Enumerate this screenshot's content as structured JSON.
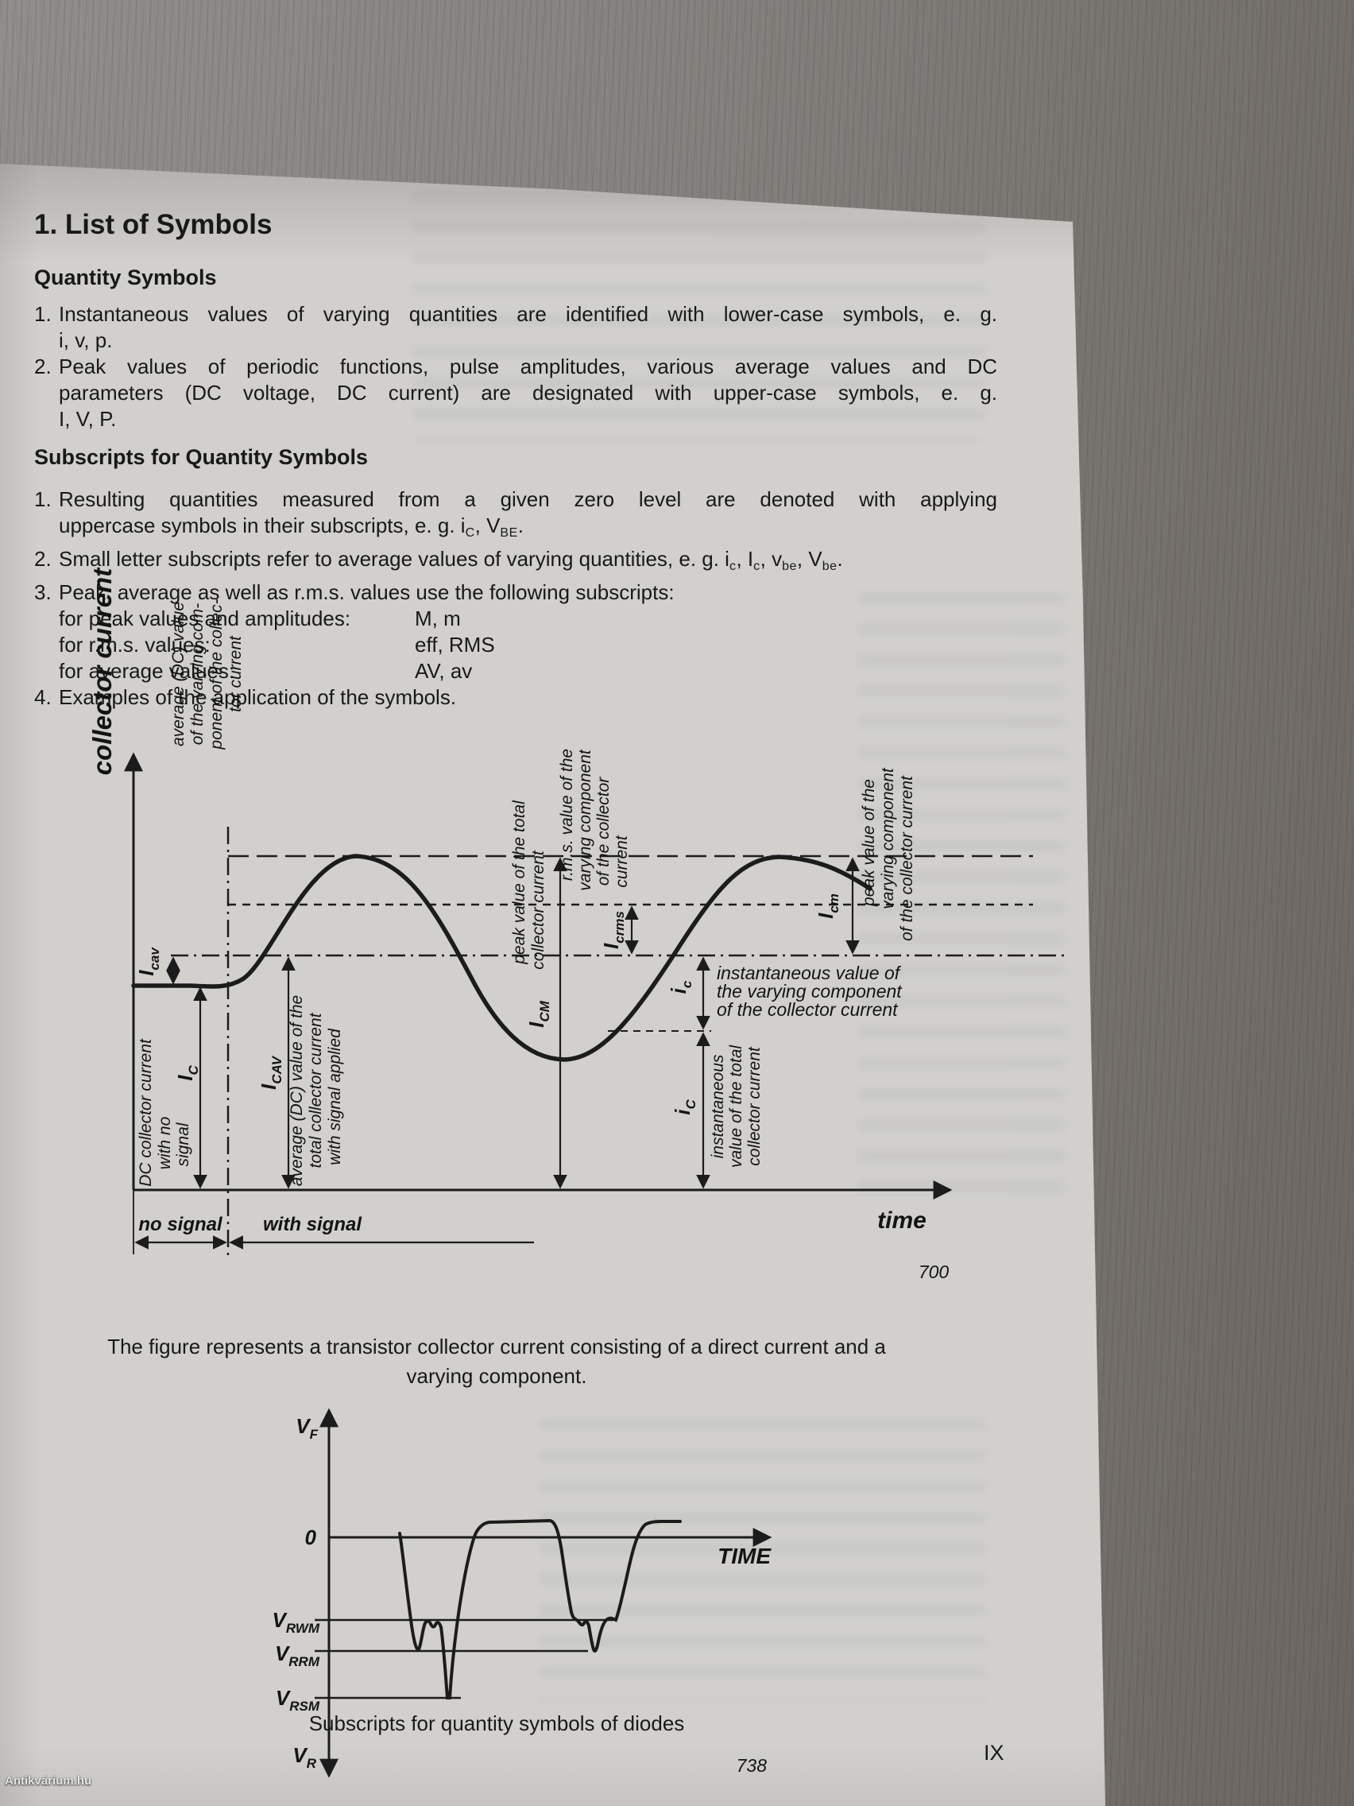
{
  "photo": {
    "watermark": "Antikvárium.hu"
  },
  "page": {
    "title": "1. List of Symbols",
    "page_number": "IX"
  },
  "quantity_symbols": {
    "title": "Quantity Symbols",
    "items": [
      {
        "num": "1.",
        "lines": [
          {
            "j": true,
            "seg": [
              {
                "t": "Instantaneous values of varying quantities are identified with lower-case symbols, e. g."
              }
            ]
          },
          {
            "seg": [
              {
                "t": "i, v, p."
              }
            ]
          }
        ]
      },
      {
        "num": "2.",
        "lines": [
          {
            "j": true,
            "seg": [
              {
                "t": "Peak values of periodic functions, pulse amplitudes, various average values and DC"
              }
            ]
          },
          {
            "j": true,
            "seg": [
              {
                "t": "parameters (DC voltage, DC current) are designated with upper-case symbols, e. g."
              }
            ]
          },
          {
            "seg": [
              {
                "t": "I, V, P."
              }
            ]
          }
        ]
      }
    ]
  },
  "subscript_symbols": {
    "title": "Subscripts for Quantity Symbols",
    "items": [
      {
        "num": "1.",
        "lines": [
          {
            "j": true,
            "seg": [
              {
                "t": "Resulting quantities measured from a given zero level are denoted with applying"
              }
            ]
          },
          {
            "seg": [
              {
                "t": "uppercase symbols in their subscripts, e. g. i"
              },
              {
                "t": "C",
                "sub": true
              },
              {
                "t": ", V"
              },
              {
                "t": "BE",
                "sub": true
              },
              {
                "t": "."
              }
            ]
          }
        ]
      },
      {
        "num": "2.",
        "lines": [
          {
            "seg": [
              {
                "t": "Small letter subscripts refer to average values of varying quantities, e. g. i"
              },
              {
                "t": "c",
                "sub": true
              },
              {
                "t": ", I"
              },
              {
                "t": "c",
                "sub": true
              },
              {
                "t": ", v"
              },
              {
                "t": "be",
                "sub": true
              },
              {
                "t": ", V"
              },
              {
                "t": "be",
                "sub": true
              },
              {
                "t": "."
              }
            ]
          }
        ]
      },
      {
        "num": "3.",
        "lines": [
          {
            "seg": [
              {
                "t": "Peak, average as well as r.m.s. values use the following subscripts:"
              }
            ]
          }
        ],
        "rows": [
          {
            "label": "for peak values and amplitudes:",
            "value": "M, m"
          },
          {
            "label": "for r.m.s. values:",
            "value": "eff, RMS"
          },
          {
            "label": "for average values:",
            "value": "AV, av"
          }
        ]
      },
      {
        "num": "4.",
        "lines": [
          {
            "seg": [
              {
                "t": "Examples of the application of the symbols."
              }
            ]
          }
        ]
      }
    ]
  },
  "fig700": {
    "fig_no": "700",
    "y_axis_title": "collector current",
    "x_axis_label": "time",
    "no_signal": "no signal",
    "with_signal": "with signal",
    "icav": {
      "b": "I",
      "s": "cav",
      "desc": [
        "average (DC) value",
        "of the varying com-",
        "ponent of the collec-",
        "tor current"
      ]
    },
    "ic_dc": {
      "b": "I",
      "s": "C",
      "desc": [
        "DC collector current",
        "with no",
        "signal"
      ]
    },
    "icav_total": {
      "b": "I",
      "s": "CAV",
      "desc": [
        "average (DC) value of the",
        "total collector current",
        "with signal applied"
      ]
    },
    "icm_total": {
      "b": "I",
      "s": "CM",
      "desc": [
        "peak value of the total",
        "collector current"
      ]
    },
    "icrms": {
      "b": "I",
      "s": "crms",
      "desc": [
        "r.m.s. value of the",
        "varying component",
        "of the collector",
        "current"
      ]
    },
    "icm_var": {
      "b": "I",
      "s": "cm",
      "desc": [
        "peak value of the",
        "varying component",
        "of the collector current"
      ]
    },
    "ic_var": {
      "b": "i",
      "s": "c"
    },
    "inst_var_note": [
      "instantaneous value of",
      "the varying component",
      "of the collector current"
    ],
    "ic_total": {
      "b": "i",
      "s": "C",
      "desc": [
        "instantaneous",
        "value of the total",
        "collector current"
      ]
    },
    "caption": [
      "The figure represents a transistor collector current consisting of a direct current and a",
      "varying component."
    ]
  },
  "fig738": {
    "fig_no": "738",
    "vf": {
      "b": "V",
      "s": "F"
    },
    "zero": "0",
    "time_label": "TIME",
    "vrwm": {
      "b": "V",
      "s": "RWM"
    },
    "vrrm": {
      "b": "V",
      "s": "RRM"
    },
    "vrsm": {
      "b": "V",
      "s": "RSM"
    },
    "vr": {
      "b": "V",
      "s": "R"
    },
    "caption": "Subscripts for quantity symbols of diodes"
  }
}
